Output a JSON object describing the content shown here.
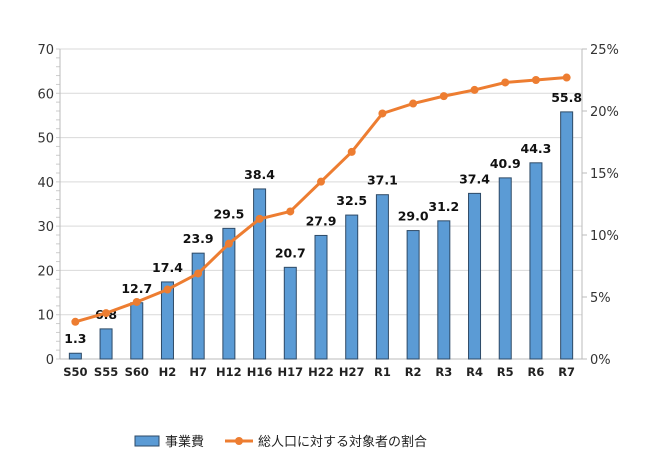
{
  "chart_data": {
    "type": "bar",
    "categories": [
      "S50",
      "S55",
      "S60",
      "H2",
      "H7",
      "H12",
      "H16",
      "H17",
      "H22",
      "H27",
      "R1",
      "R2",
      "R3",
      "R4",
      "R5",
      "R6",
      "R7"
    ],
    "series": [
      {
        "name": "事業費",
        "type": "bar",
        "axis": "left",
        "color": "#5b9bd5",
        "values": [
          1.3,
          6.8,
          12.7,
          17.4,
          23.9,
          29.5,
          38.4,
          20.7,
          27.9,
          32.5,
          37.1,
          29.0,
          31.2,
          37.4,
          40.9,
          44.3,
          55.8
        ],
        "labels": [
          "1.3",
          "6.8",
          "12.7",
          "17.4",
          "23.9",
          "29.5",
          "38.4",
          "20.7",
          "27.9",
          "32.5",
          "37.1",
          "29.0",
          "31.2",
          "37.4",
          "40.9",
          "44.3",
          "55.8"
        ]
      },
      {
        "name": "総人口に対する対象者の割合",
        "type": "line",
        "axis": "right",
        "color": "#ed7d31",
        "values": [
          3.0,
          3.7,
          4.6,
          5.6,
          6.9,
          9.3,
          11.3,
          11.9,
          14.3,
          16.7,
          19.8,
          20.6,
          21.2,
          21.7,
          22.3,
          22.5,
          22.7
        ]
      }
    ],
    "ylim": [
      0,
      70
    ],
    "yticks": [
      "0",
      "10",
      "20",
      "30",
      "40",
      "50",
      "60",
      "70"
    ],
    "y2lim": [
      0,
      25
    ],
    "y2ticks": [
      "0%",
      "5%",
      "10%",
      "15%",
      "20%",
      "25%"
    ],
    "grid": true,
    "legend": "bottom"
  }
}
